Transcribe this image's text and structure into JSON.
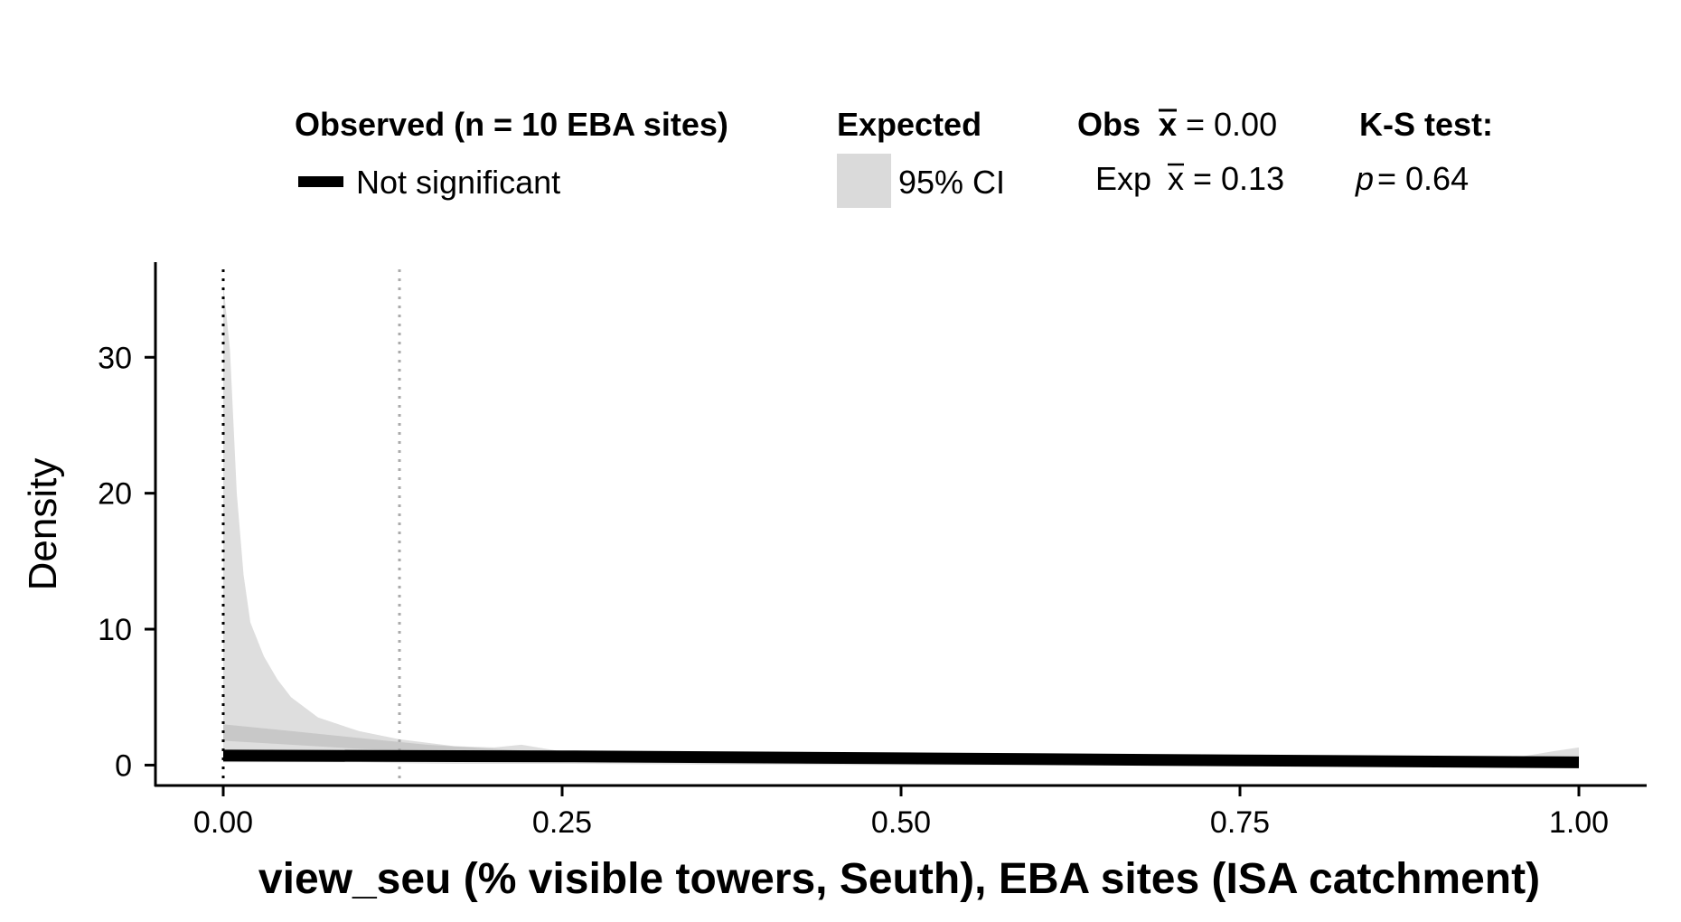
{
  "legend": {
    "observed_title": "Observed (n = 10 EBA sites)",
    "observed_item": "Not significant",
    "expected_title": "Expected",
    "expected_item": "95% CI",
    "obs_mean_label": "Obs",
    "obs_mean_value": "= 0.00",
    "exp_mean_label": "Exp",
    "exp_mean_value": "= 0.13",
    "ks_title": "K-S test:",
    "ks_p_label": "p",
    "ks_p_value": "= 0.64"
  },
  "chart_data": {
    "type": "area",
    "xlabel": "view_seu (% visible towers, Seuth), EBA sites (ISA catchment)",
    "ylabel": "Density",
    "xlim": [
      -0.05,
      1.05
    ],
    "ylim": [
      -1.5,
      37
    ],
    "x_ticks": [
      0,
      0.25,
      0.5,
      0.75,
      1
    ],
    "x_tick_labels": [
      "0.00",
      "0.25",
      "0.50",
      "0.75",
      "1.00"
    ],
    "y_ticks": [
      0,
      10,
      20,
      30
    ],
    "y_tick_labels": [
      "0",
      "10",
      "20",
      "30"
    ],
    "observed_mean": 0.0,
    "expected_mean": 0.13,
    "expected_ci": [
      {
        "x": 0.0,
        "lo": 0.2,
        "hi": 35.5
      },
      {
        "x": 0.005,
        "lo": 0.2,
        "hi": 30.5
      },
      {
        "x": 0.01,
        "lo": 0.2,
        "hi": 20.0
      },
      {
        "x": 0.015,
        "lo": 0.2,
        "hi": 14.0
      },
      {
        "x": 0.02,
        "lo": 0.2,
        "hi": 10.5
      },
      {
        "x": 0.03,
        "lo": 0.2,
        "hi": 8.0
      },
      {
        "x": 0.04,
        "lo": 0.2,
        "hi": 6.3
      },
      {
        "x": 0.05,
        "lo": 0.2,
        "hi": 5.0
      },
      {
        "x": 0.07,
        "lo": 0.2,
        "hi": 3.5
      },
      {
        "x": 0.1,
        "lo": 0.2,
        "hi": 2.5
      },
      {
        "x": 0.13,
        "lo": 0.15,
        "hi": 1.9
      },
      {
        "x": 0.17,
        "lo": 0.1,
        "hi": 1.4
      },
      {
        "x": 0.2,
        "lo": 0.1,
        "hi": 1.3
      },
      {
        "x": 0.22,
        "lo": 0.1,
        "hi": 1.5
      },
      {
        "x": 0.25,
        "lo": 0.1,
        "hi": 1.0
      },
      {
        "x": 0.35,
        "lo": 0.05,
        "hi": 0.8
      },
      {
        "x": 0.5,
        "lo": 0.0,
        "hi": 0.6
      },
      {
        "x": 0.65,
        "lo": 0.0,
        "hi": 0.5
      },
      {
        "x": 0.8,
        "lo": 0.0,
        "hi": 0.4
      },
      {
        "x": 0.9,
        "lo": 0.0,
        "hi": 0.35
      },
      {
        "x": 0.95,
        "lo": 0.0,
        "hi": 0.5
      },
      {
        "x": 0.98,
        "lo": 0.0,
        "hi": 1.0
      },
      {
        "x": 1.0,
        "lo": 0.0,
        "hi": 1.3
      }
    ],
    "expected_mean_band": [
      {
        "x": 0.0,
        "lo": 1.8,
        "hi": 3.0
      },
      {
        "x": 0.05,
        "lo": 1.5,
        "hi": 2.5
      },
      {
        "x": 0.1,
        "lo": 1.2,
        "hi": 2.0
      },
      {
        "x": 0.15,
        "lo": 1.0,
        "hi": 1.5
      },
      {
        "x": 0.2,
        "lo": 0.8,
        "hi": 1.2
      },
      {
        "x": 0.25,
        "lo": 0.6,
        "hi": 0.9
      }
    ],
    "observed": [
      {
        "x": 0.0,
        "y": 0.7
      },
      {
        "x": 0.25,
        "y": 0.65
      },
      {
        "x": 0.5,
        "y": 0.5
      },
      {
        "x": 0.75,
        "y": 0.35
      },
      {
        "x": 1.0,
        "y": 0.2
      }
    ]
  }
}
